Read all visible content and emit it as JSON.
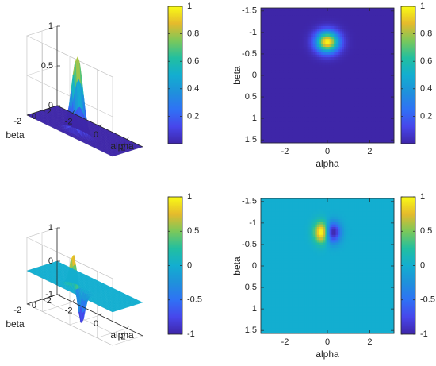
{
  "chart_data": [
    {
      "id": "surf-top",
      "type": "surface",
      "xlabel": "alpha",
      "ylabel": "beta",
      "zlabel": "",
      "xlim": [
        -3.1416,
        3.1416
      ],
      "ylim": [
        -1.5708,
        1.5708
      ],
      "zlim": [
        0,
        1
      ],
      "xticks": [
        "-2",
        "0",
        "2"
      ],
      "yticks": [
        "-2",
        "0",
        "2"
      ],
      "zticks": [
        "0",
        "0.5",
        "1"
      ],
      "colorbar_ticks": [
        "0.2",
        "0.4",
        "0.6",
        "0.8",
        "1"
      ],
      "clim": [
        0,
        1
      ],
      "colormap": "parula",
      "function": "gaussian",
      "peak": {
        "alpha": 0,
        "beta": -0.78,
        "value": 1
      },
      "title": ""
    },
    {
      "id": "map-top",
      "type": "heatmap",
      "xlabel": "alpha",
      "ylabel": "beta",
      "xlim": [
        -3.1416,
        3.1416
      ],
      "ylim": [
        -1.5708,
        1.5708
      ],
      "y_reversed": true,
      "xticks": [
        "-2",
        "0",
        "2"
      ],
      "yticks": [
        "-1.5",
        "-1",
        "-0.5",
        "0",
        "0.5",
        "1",
        "1.5"
      ],
      "colorbar_ticks": [
        "0.2",
        "0.4",
        "0.6",
        "0.8",
        "1"
      ],
      "clim": [
        0,
        1
      ],
      "colormap": "parula",
      "function": "gaussian",
      "peak": {
        "alpha": 0,
        "beta": -0.78,
        "value": 1
      },
      "title": ""
    },
    {
      "id": "surf-bottom",
      "type": "surface",
      "xlabel": "alpha",
      "ylabel": "beta",
      "zlabel": "",
      "xlim": [
        -3.1416,
        3.1416
      ],
      "ylim": [
        -1.5708,
        1.5708
      ],
      "zlim": [
        -1,
        1
      ],
      "xticks": [
        "-2",
        "0",
        "2"
      ],
      "yticks": [
        "-2",
        "0",
        "2"
      ],
      "zticks": [
        "-1",
        "0",
        "1"
      ],
      "colorbar_ticks": [
        "-1",
        "-0.5",
        "0",
        "0.5",
        "1"
      ],
      "clim": [
        -1,
        1
      ],
      "colormap": "parula",
      "function": "dipole",
      "peak": {
        "alpha": -0.3,
        "beta": -0.78,
        "value": 1
      },
      "trough": {
        "alpha": 0.3,
        "beta": -0.78,
        "value": -1
      },
      "title": ""
    },
    {
      "id": "map-bottom",
      "type": "heatmap",
      "xlabel": "alpha",
      "ylabel": "beta",
      "xlim": [
        -3.1416,
        3.1416
      ],
      "ylim": [
        -1.5708,
        1.5708
      ],
      "y_reversed": true,
      "xticks": [
        "-2",
        "0",
        "2"
      ],
      "yticks": [
        "-1.5",
        "-1",
        "-0.5",
        "0",
        "0.5",
        "1",
        "1.5"
      ],
      "colorbar_ticks": [
        "-1",
        "-0.5",
        "0",
        "0.5",
        "1"
      ],
      "clim": [
        -1,
        1
      ],
      "colormap": "parula",
      "function": "dipole",
      "peak": {
        "alpha": -0.3,
        "beta": -0.78,
        "value": 1
      },
      "trough": {
        "alpha": 0.3,
        "beta": -0.78,
        "value": -1
      },
      "title": ""
    }
  ],
  "colors": {
    "parula_low": "#3e26a8",
    "parula_mid": "#13beb7",
    "parula_high": "#f9fb15",
    "axis": "#262626",
    "grid": "#dcdcdc"
  }
}
